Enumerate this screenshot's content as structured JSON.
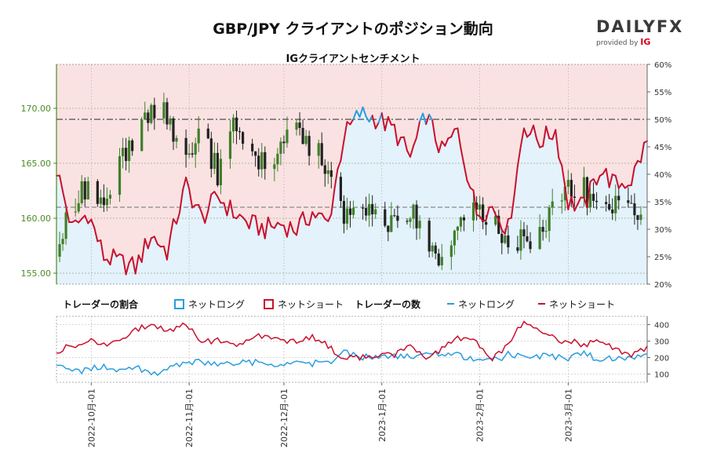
{
  "title": "GBP/JPY クライアントのポジション動向",
  "subtitle": "IGクライアントセンチメント",
  "logo": {
    "main": "DAILYFX",
    "sub": "provided by",
    "brand": "IG"
  },
  "colors": {
    "long": "#2a9de0",
    "short": "#c8102e",
    "long_bg": "#e3f2fb",
    "short_bg": "#fbe2e2",
    "candle_up": "#3f7f2a",
    "candle_down": "#222222",
    "axis_left": "#4b8b24",
    "dash": "#666666"
  },
  "legend": {
    "ratio_title": "トレーダーの割合",
    "ratio_long": "ネットロング",
    "ratio_short": "ネットショート",
    "count_title": "トレーダーの数",
    "count_long": "ネットロング",
    "count_short": "ネットショート"
  },
  "chart_data": [
    {
      "type": "candlestick",
      "series": "GBP/JPY price",
      "y_axis": "left",
      "ylim": [
        154.0,
        174.0
      ],
      "yticks": [
        155.0,
        160.0,
        165.0,
        170.0
      ],
      "ytick_labels": [
        "155.00",
        "160.00",
        "165.00",
        "170.00"
      ],
      "reference_line": 169.0,
      "x_start": "2022-09-20",
      "x_end": "2023-03-26",
      "xtick_labels": [
        "2022-10月-01",
        "2022-11月-01",
        "2022-12月-01",
        "2023-1月-01",
        "2023-2月-01",
        "2023-3月-01"
      ],
      "x": [
        "2022-09-20",
        "2022-09-25",
        "2022-09-30",
        "2022-10-05",
        "2022-10-10",
        "2022-10-15",
        "2022-10-20",
        "2022-10-25",
        "2022-10-31",
        "2022-11-05",
        "2022-11-10",
        "2022-11-15",
        "2022-11-20",
        "2022-11-25",
        "2022-11-30",
        "2022-12-05",
        "2022-12-10",
        "2022-12-15",
        "2022-12-20",
        "2022-12-25",
        "2022-12-31",
        "2023-01-05",
        "2023-01-10",
        "2023-01-15",
        "2023-01-20",
        "2023-01-25",
        "2023-01-31",
        "2023-02-05",
        "2023-02-10",
        "2023-02-15",
        "2023-02-20",
        "2023-02-25",
        "2023-03-01",
        "2023-03-06",
        "2023-03-11",
        "2023-03-16",
        "2023-03-21",
        "2023-03-26"
      ],
      "close": [
        156.5,
        161.5,
        163.2,
        160.2,
        164.5,
        168.0,
        170.0,
        169.5,
        165.5,
        167.5,
        164.0,
        168.0,
        167.0,
        164.5,
        166.5,
        168.0,
        166.0,
        165.0,
        160.5,
        160.0,
        160.0,
        159.5,
        161.0,
        157.0,
        156.5,
        158.5,
        160.5,
        160.5,
        156.5,
        158.0,
        158.5,
        162.0,
        163.0,
        162.5,
        161.0,
        161.0,
        161.5,
        159.0
      ]
    },
    {
      "type": "line",
      "series": "IG client sentiment — % net short",
      "y_axis": "right",
      "ylim": [
        20,
        60
      ],
      "yticks": [
        20,
        25,
        30,
        35,
        40,
        45,
        50,
        55,
        60
      ],
      "ytick_labels": [
        "20%",
        "25%",
        "30%",
        "35%",
        "40%",
        "45%",
        "50%",
        "55%",
        "60%"
      ],
      "reference_line": 34,
      "x": [
        "2022-09-20",
        "2022-09-25",
        "2022-09-30",
        "2022-10-05",
        "2022-10-10",
        "2022-10-15",
        "2022-10-20",
        "2022-10-25",
        "2022-10-31",
        "2022-11-05",
        "2022-11-10",
        "2022-11-15",
        "2022-11-20",
        "2022-11-25",
        "2022-11-30",
        "2022-12-05",
        "2022-12-10",
        "2022-12-15",
        "2022-12-20",
        "2022-12-25",
        "2022-12-31",
        "2023-01-05",
        "2023-01-10",
        "2023-01-15",
        "2023-01-20",
        "2023-01-25",
        "2023-01-31",
        "2023-02-05",
        "2023-02-10",
        "2023-02-15",
        "2023-02-20",
        "2023-02-25",
        "2023-03-01",
        "2023-03-06",
        "2023-03-11",
        "2023-03-16",
        "2023-03-21",
        "2023-03-26"
      ],
      "values": [
        41,
        30,
        33,
        25,
        24,
        23,
        29,
        26,
        38,
        32,
        36,
        33,
        31,
        30,
        31,
        30,
        33,
        31,
        47,
        51,
        50,
        48,
        43,
        51,
        44,
        48,
        33,
        34,
        30,
        49,
        46,
        48,
        35,
        34,
        41,
        38,
        39,
        46
      ]
    },
    {
      "type": "line",
      "series": "Number of traders",
      "y_axis": "right",
      "ylim": [
        50,
        450
      ],
      "yticks": [
        100,
        200,
        300,
        400
      ],
      "ytick_labels": [
        "100",
        "200",
        "300",
        "400"
      ],
      "x": [
        "2022-09-20",
        "2022-09-25",
        "2022-09-30",
        "2022-10-05",
        "2022-10-10",
        "2022-10-15",
        "2022-10-20",
        "2022-10-25",
        "2022-10-31",
        "2022-11-05",
        "2022-11-10",
        "2022-11-15",
        "2022-11-20",
        "2022-11-25",
        "2022-11-30",
        "2022-12-05",
        "2022-12-10",
        "2022-12-15",
        "2022-12-20",
        "2022-12-25",
        "2022-12-31",
        "2023-01-05",
        "2023-01-10",
        "2023-01-15",
        "2023-01-20",
        "2023-01-25",
        "2023-01-31",
        "2023-02-05",
        "2023-02-10",
        "2023-02-15",
        "2023-02-20",
        "2023-02-25",
        "2023-03-01",
        "2023-03-06",
        "2023-03-11",
        "2023-03-16",
        "2023-03-21",
        "2023-03-26"
      ],
      "series_values": [
        {
          "name": "ネットロング",
          "values": [
            165,
            110,
            130,
            140,
            120,
            150,
            100,
            130,
            160,
            175,
            150,
            165,
            175,
            160,
            150,
            160,
            165,
            170,
            230,
            205,
            200,
            205,
            210,
            230,
            220,
            220,
            175,
            175,
            220,
            210,
            210,
            200,
            195,
            230,
            175,
            200,
            190,
            220
          ]
        },
        {
          "name": "ネットショート",
          "values": [
            240,
            270,
            300,
            280,
            320,
            360,
            410,
            360,
            400,
            290,
            310,
            280,
            310,
            340,
            310,
            290,
            330,
            270,
            190,
            200,
            210,
            215,
            260,
            200,
            250,
            310,
            290,
            200,
            280,
            430,
            360,
            310,
            300,
            280,
            300,
            240,
            220,
            255
          ]
        }
      ]
    }
  ]
}
